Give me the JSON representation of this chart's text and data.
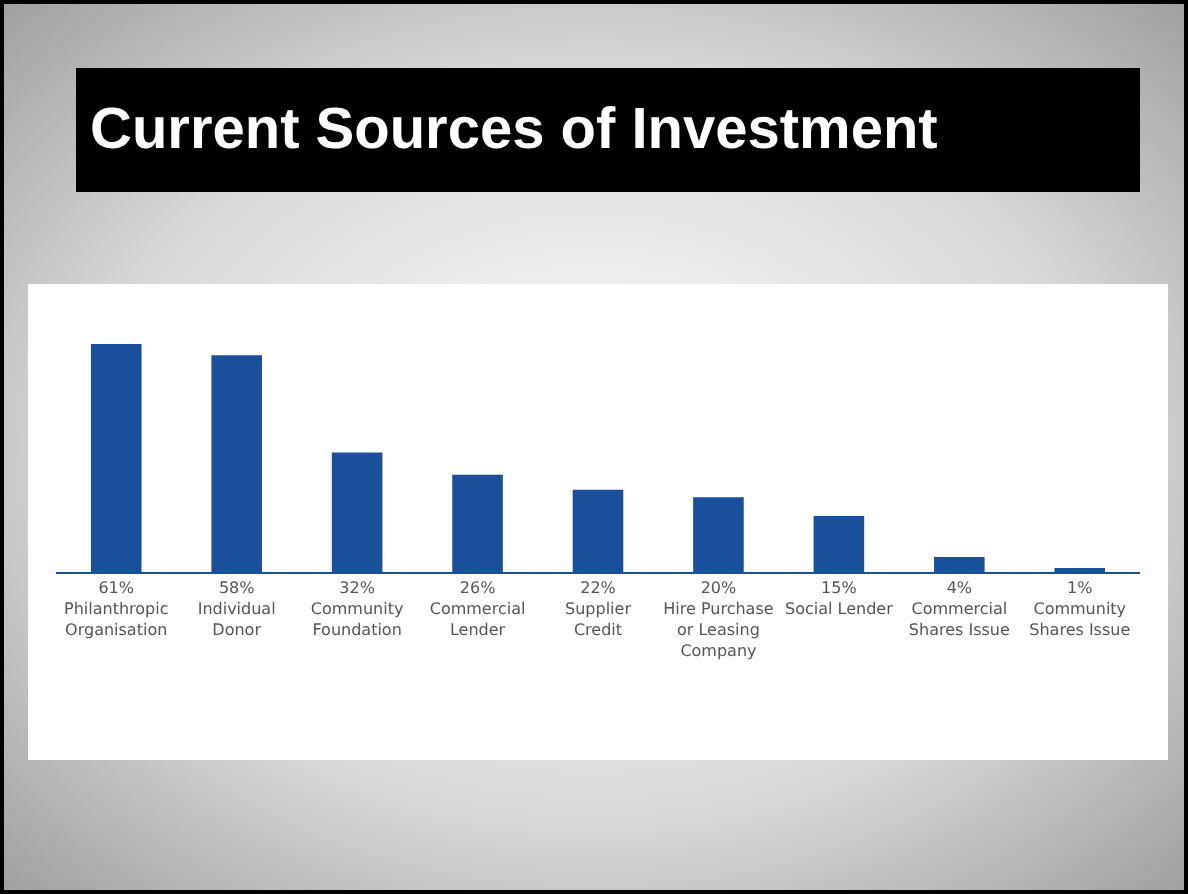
{
  "chart_data": {
    "type": "bar",
    "title": "Current Sources of Investment",
    "categories": [
      "Philanthropic Organisation",
      "Individual Donor",
      "Community Foundation",
      "Commercial Lender",
      "Supplier Credit",
      "Hire Purchase or Leasing Company",
      "Social Lender",
      "Commercial Shares Issue",
      "Community Shares Issue"
    ],
    "values": [
      61,
      58,
      32,
      26,
      22,
      20,
      15,
      4,
      1
    ],
    "value_labels": [
      "61%",
      "58%",
      "32%",
      "26%",
      "22%",
      "20%",
      "15%",
      "4%",
      "1%"
    ],
    "color": "#1a4f9c",
    "tick_labels": "x"
  }
}
